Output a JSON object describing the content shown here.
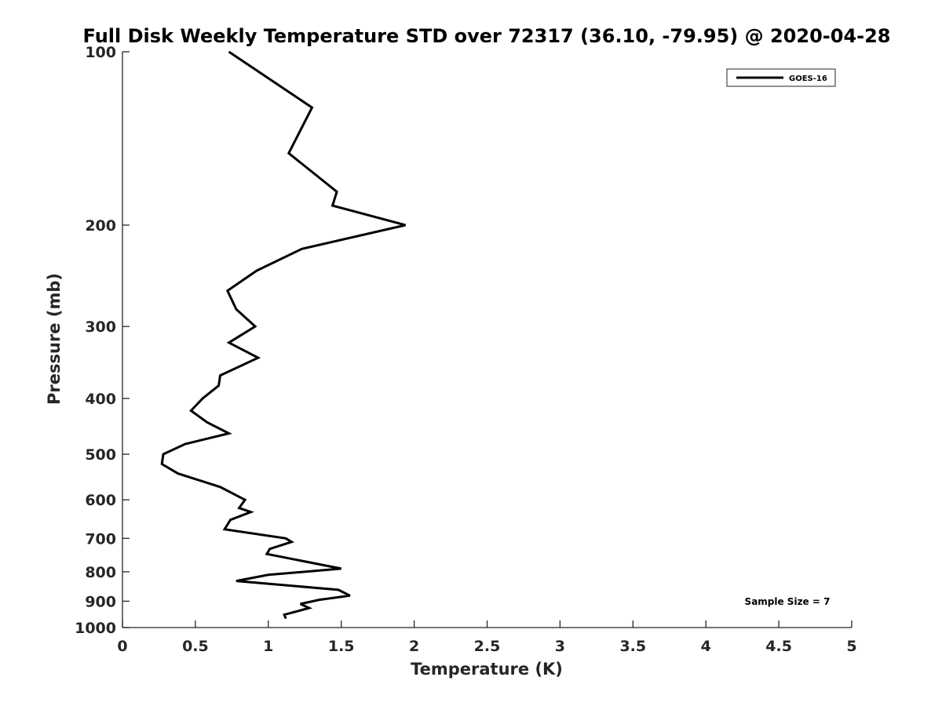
{
  "chart_data": {
    "type": "line",
    "title": "Full Disk Weekly Temperature STD over 72317 (36.10, -79.95) @ 2020-04-28",
    "xlabel": "Temperature (K)",
    "ylabel": "Pressure (mb)",
    "xlim": [
      0,
      5
    ],
    "ylim": [
      1000,
      100
    ],
    "y_scale": "log",
    "y_reversed": true,
    "x_ticks": [
      0,
      0.5,
      1,
      1.5,
      2,
      2.5,
      3,
      3.5,
      4,
      4.5,
      5
    ],
    "x_tick_labels": [
      "0",
      "0.5",
      "1",
      "1.5",
      "2",
      "2.5",
      "3",
      "3.5",
      "4",
      "4.5",
      "5"
    ],
    "y_ticks": [
      100,
      200,
      300,
      400,
      500,
      600,
      700,
      800,
      900,
      1000
    ],
    "y_tick_labels": [
      "100",
      "200",
      "300",
      "400",
      "500",
      "600",
      "700",
      "800",
      "900",
      "1000"
    ],
    "legend": {
      "placement": "top-right",
      "entries": [
        "GOES-16"
      ]
    },
    "annotation": "Sample Size = 7",
    "grid": false,
    "series": [
      {
        "name": "GOES-16",
        "color": "#000000",
        "points": [
          [
            0.73,
            100
          ],
          [
            1.3,
            125
          ],
          [
            1.14,
            150
          ],
          [
            1.47,
            175
          ],
          [
            1.44,
            185
          ],
          [
            1.94,
            200
          ],
          [
            1.23,
            220
          ],
          [
            0.92,
            240
          ],
          [
            0.72,
            260
          ],
          [
            0.78,
            280
          ],
          [
            0.91,
            300
          ],
          [
            0.73,
            320
          ],
          [
            0.93,
            340
          ],
          [
            0.67,
            365
          ],
          [
            0.66,
            380
          ],
          [
            0.55,
            400
          ],
          [
            0.47,
            420
          ],
          [
            0.58,
            440
          ],
          [
            0.73,
            460
          ],
          [
            0.43,
            480
          ],
          [
            0.28,
            500
          ],
          [
            0.27,
            520
          ],
          [
            0.38,
            540
          ],
          [
            0.67,
            570
          ],
          [
            0.84,
            600
          ],
          [
            0.8,
            620
          ],
          [
            0.88,
            630
          ],
          [
            0.74,
            650
          ],
          [
            0.7,
            675
          ],
          [
            1.12,
            700
          ],
          [
            1.16,
            710
          ],
          [
            1.01,
            730
          ],
          [
            0.99,
            745
          ],
          [
            1.5,
            790
          ],
          [
            1.0,
            810
          ],
          [
            0.78,
            830
          ],
          [
            1.48,
            860
          ],
          [
            1.56,
            880
          ],
          [
            1.35,
            895
          ],
          [
            1.22,
            910
          ],
          [
            1.28,
            925
          ],
          [
            1.11,
            950
          ],
          [
            1.12,
            965
          ]
        ]
      }
    ]
  },
  "page_width": 1200,
  "page_height": 900
}
